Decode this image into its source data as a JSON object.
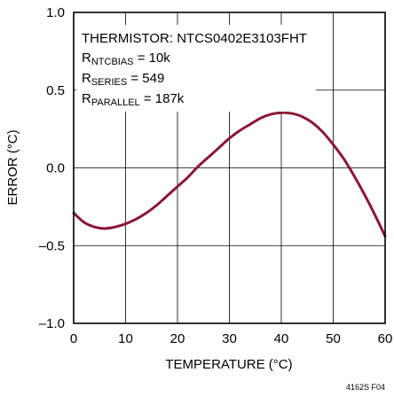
{
  "chart_data": {
    "type": "line",
    "xlabel": "TEMPERATURE (°C)",
    "ylabel": "ERROR (°C)",
    "xlim": [
      0,
      60
    ],
    "ylim": [
      -1.0,
      1.0
    ],
    "x_ticks": [
      0,
      10,
      20,
      30,
      40,
      50,
      60
    ],
    "x_tick_labels": [
      "0",
      "10",
      "20",
      "30",
      "40",
      "50",
      "60"
    ],
    "y_ticks": [
      1.0,
      0.5,
      0.0,
      -0.5,
      -1.0
    ],
    "y_tick_labels": [
      "1.0",
      "0.5",
      "0.0",
      "–0.5",
      "–1.0"
    ],
    "grid": true,
    "series": [
      {
        "color": "#8b1538",
        "x": [
          0,
          2,
          4,
          6,
          8,
          10,
          12,
          14,
          16,
          18,
          20,
          22,
          24,
          26,
          28,
          30,
          32,
          34,
          36,
          38,
          40,
          42,
          44,
          46,
          48,
          50,
          52,
          54,
          56,
          58,
          60
        ],
        "y": [
          -0.29,
          -0.35,
          -0.38,
          -0.39,
          -0.38,
          -0.36,
          -0.33,
          -0.29,
          -0.24,
          -0.18,
          -0.12,
          -0.06,
          0.01,
          0.07,
          0.13,
          0.19,
          0.24,
          0.28,
          0.32,
          0.345,
          0.355,
          0.35,
          0.33,
          0.29,
          0.23,
          0.15,
          0.06,
          -0.05,
          -0.17,
          -0.3,
          -0.44
        ]
      }
    ],
    "annotations": {
      "line1": "THERMISTOR: NTCS0402E3103FHT",
      "r_ntcbias": {
        "prefix": "R",
        "sub": "NTCBIAS",
        "value": " = 10k"
      },
      "r_series": {
        "prefix": "R",
        "sub": "SERIES",
        "value": " = 549"
      },
      "r_parallel": {
        "prefix": "R",
        "sub": "PARALLEL",
        "value": " = 187k"
      }
    },
    "figure_id": "4162S F04"
  }
}
